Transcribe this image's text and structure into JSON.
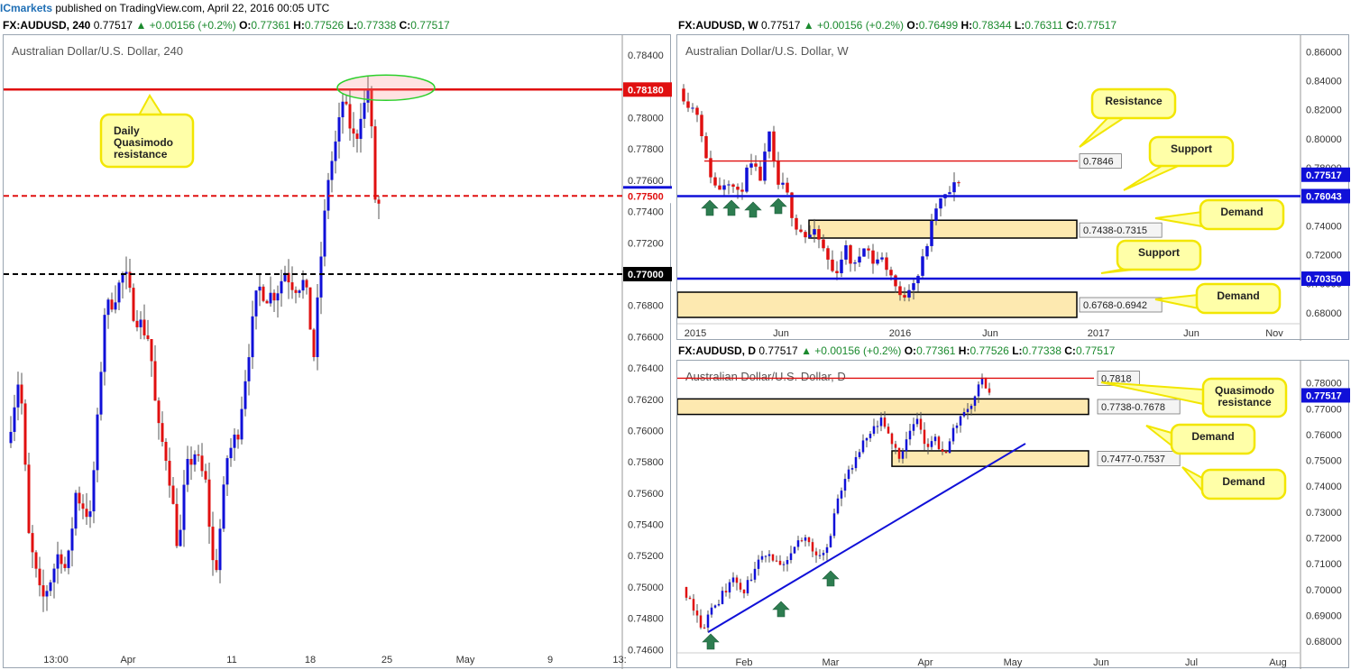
{
  "header": {
    "brand": "ICmarkets",
    "rest": " published on TradingView.com, April 22, 2016 00:05 UTC"
  },
  "colors": {
    "bull": "#1010d8",
    "bear": "#e01010",
    "zone_fill": "#fde9b0",
    "annotation_fill": "#ffffa8",
    "annotation_border": "#f2e600",
    "support_line": "#1010d8",
    "resistance_line": "#e01010"
  },
  "charts": [
    {
      "id": "h4",
      "header": {
        "symbol": "FX:AUDUSD, 240",
        "price": "0.77517",
        "change": "+0.00156 (+0.2%)",
        "o": "0.77361",
        "h": "0.77526",
        "l": "0.77338",
        "c": "0.77517"
      },
      "title": "Australian Dollar/U.S. Dollar, 240",
      "y_ticks": [
        "0.78400",
        "0.78200",
        "0.78000",
        "0.77800",
        "0.77600",
        "0.77400",
        "0.77200",
        "0.77000",
        "0.76800",
        "0.76600",
        "0.76400",
        "0.76200",
        "0.76000",
        "0.75800",
        "0.75600",
        "0.75400",
        "0.75200",
        "0.75000",
        "0.74800",
        "0.74600"
      ],
      "x_ticks": [
        "13:00",
        "Apr",
        "11",
        "18",
        "25",
        "May",
        "9",
        "13:"
      ],
      "price_labels": [
        {
          "text": "0.78180",
          "value": 0.7818,
          "kind": "red"
        },
        {
          "text": "0.77517",
          "value": 0.77517,
          "kind": "blue"
        },
        {
          "text": "0.77500",
          "value": 0.775,
          "kind": "redtext"
        },
        {
          "text": "0.77000",
          "value": 0.77,
          "kind": "black"
        }
      ],
      "annotations": [
        {
          "text": "Daily Quasimodo resistance"
        }
      ]
    },
    {
      "id": "weekly",
      "header": {
        "symbol": "FX:AUDUSD, W",
        "price": "0.77517",
        "change": "+0.00156 (+0.2%)",
        "o": "0.76499",
        "h": "0.78344",
        "l": "0.76311",
        "c": "0.77517"
      },
      "title": "Australian Dollar/U.S. Dollar, W",
      "y_ticks": [
        "0.86000",
        "0.84000",
        "0.82000",
        "0.80000",
        "0.78000",
        "0.76000",
        "0.74000",
        "0.72000",
        "0.70000",
        "0.68000"
      ],
      "x_ticks": [
        "2015",
        "Jun",
        "2016",
        "Jun",
        "2017",
        "Jun",
        "Nov"
      ],
      "price_labels": [
        {
          "text": "0.77517",
          "value": 0.77517,
          "kind": "blue"
        },
        {
          "text": "0.76043",
          "value": 0.76043,
          "kind": "blue"
        },
        {
          "text": "0.70350",
          "value": 0.7035,
          "kind": "blue"
        }
      ],
      "zone_labels": [
        "0.7846",
        "0.7438-0.7315",
        "0.6768-0.6942"
      ],
      "annotations": [
        {
          "text": "Resistance"
        },
        {
          "text": "Support"
        },
        {
          "text": "Demand"
        },
        {
          "text": "Support"
        },
        {
          "text": "Demand"
        }
      ]
    },
    {
      "id": "daily",
      "header": {
        "symbol": "FX:AUDUSD, D",
        "price": "0.77517",
        "change": "+0.00156 (+0.2%)",
        "o": "0.77361",
        "h": "0.77526",
        "l": "0.77338",
        "c": "0.77517"
      },
      "title": "Australian Dollar/U.S. Dollar, D",
      "y_ticks": [
        "0.78000",
        "0.77000",
        "0.76000",
        "0.75000",
        "0.74000",
        "0.73000",
        "0.72000",
        "0.71000",
        "0.70000",
        "0.69000",
        "0.68000"
      ],
      "x_ticks": [
        "Feb",
        "Mar",
        "Apr",
        "May",
        "Jun",
        "Jul",
        "Aug"
      ],
      "price_labels": [
        {
          "text": "0.77517",
          "value": 0.77517,
          "kind": "blue"
        }
      ],
      "zone_labels": [
        "0.7818",
        "0.7738-0.7678",
        "0.7477-0.7537"
      ],
      "annotations": [
        {
          "text": "Quasimodo resistance"
        },
        {
          "text": "Demand"
        },
        {
          "text": "Demand"
        }
      ]
    }
  ],
  "chart_data": [
    {
      "type": "candlestick",
      "title": "Australian Dollar/U.S. Dollar, 240",
      "ylim": [
        0.7455,
        0.7847
      ],
      "levels": [
        {
          "value": 0.7818,
          "style": "solid",
          "color": "red",
          "label": "Daily Quasimodo resistance"
        },
        {
          "value": 0.775,
          "style": "dashed",
          "color": "red"
        },
        {
          "value": 0.77,
          "style": "dashed",
          "color": "black"
        }
      ],
      "path": [
        [
          0,
          0.7592
        ],
        [
          14,
          0.7638
        ],
        [
          24,
          0.7532
        ],
        [
          38,
          0.749
        ],
        [
          48,
          0.7505
        ],
        [
          58,
          0.7524
        ],
        [
          66,
          0.7508
        ],
        [
          76,
          0.756
        ],
        [
          92,
          0.7544
        ],
        [
          100,
          0.7605
        ],
        [
          108,
          0.7676
        ],
        [
          118,
          0.7684
        ],
        [
          130,
          0.7702
        ],
        [
          140,
          0.7676
        ],
        [
          150,
          0.7666
        ],
        [
          158,
          0.7658
        ],
        [
          166,
          0.7604
        ],
        [
          178,
          0.758
        ],
        [
          190,
          0.7521
        ],
        [
          198,
          0.7574
        ],
        [
          208,
          0.7586
        ],
        [
          220,
          0.7566
        ],
        [
          230,
          0.7503
        ],
        [
          244,
          0.7583
        ],
        [
          256,
          0.76
        ],
        [
          268,
          0.7652
        ],
        [
          278,
          0.7692
        ],
        [
          288,
          0.7686
        ],
        [
          298,
          0.7688
        ],
        [
          308,
          0.7702
        ],
        [
          318,
          0.7692
        ],
        [
          330,
          0.7695
        ],
        [
          340,
          0.7648
        ],
        [
          348,
          0.7712
        ],
        [
          356,
          0.7762
        ],
        [
          366,
          0.7788
        ],
        [
          372,
          0.7811
        ],
        [
          380,
          0.7795
        ],
        [
          386,
          0.7783
        ],
        [
          392,
          0.7804
        ],
        [
          398,
          0.781
        ],
        [
          402,
          0.7826
        ],
        [
          406,
          0.7754
        ],
        [
          411,
          0.774
        ],
        [
          414,
          0.7752
        ]
      ],
      "markers": [
        "ellipse near 0.7818 around 20-21 Apr"
      ]
    },
    {
      "type": "candlestick",
      "title": "Australian Dollar/U.S. Dollar, W",
      "ylim": [
        0.6712,
        0.8664
      ],
      "levels": [
        {
          "value": 0.7846,
          "color": "red",
          "label": "Resistance"
        },
        {
          "value": 0.76043,
          "color": "blue",
          "label": "Support"
        },
        {
          "value": 0.7035,
          "color": "blue",
          "label": "Support"
        }
      ],
      "zones": [
        {
          "from": 0.7315,
          "to": 0.7438,
          "label": "Demand"
        },
        {
          "from": 0.6768,
          "to": 0.6942,
          "label": "Demand"
        }
      ],
      "path": [
        [
          0,
          0.8345
        ],
        [
          12,
          0.823
        ],
        [
          22,
          0.817
        ],
        [
          30,
          0.784
        ],
        [
          42,
          0.764
        ],
        [
          54,
          0.7735
        ],
        [
          66,
          0.76
        ],
        [
          78,
          0.782
        ],
        [
          90,
          0.773
        ],
        [
          100,
          0.802
        ],
        [
          108,
          0.769
        ],
        [
          118,
          0.765
        ],
        [
          128,
          0.742
        ],
        [
          140,
          0.733
        ],
        [
          152,
          0.734
        ],
        [
          164,
          0.718
        ],
        [
          172,
          0.705
        ],
        [
          184,
          0.725
        ],
        [
          194,
          0.71
        ],
        [
          206,
          0.73
        ],
        [
          214,
          0.715
        ],
        [
          224,
          0.718
        ],
        [
          236,
          0.705
        ],
        [
          246,
          0.688
        ],
        [
          256,
          0.7
        ],
        [
          266,
          0.707
        ],
        [
          276,
          0.73
        ],
        [
          286,
          0.755
        ],
        [
          296,
          0.76
        ],
        [
          306,
          0.768
        ],
        [
          314,
          0.775
        ]
      ],
      "markers": [
        "up-arrows under 2015 support touches"
      ]
    },
    {
      "type": "candlestick",
      "title": "Australian Dollar/U.S. Dollar, D",
      "ylim": [
        0.6762,
        0.7858
      ],
      "levels": [
        {
          "value": 0.7818,
          "color": "red",
          "label": "Quasimodo resistance"
        }
      ],
      "zones": [
        {
          "from": 0.7678,
          "to": 0.7738,
          "label": "Demand"
        },
        {
          "from": 0.7477,
          "to": 0.7537,
          "label": "Demand"
        }
      ],
      "trendline": [
        [
          0.6835,
          "mid-Jan"
        ],
        [
          0.7565,
          "early May"
        ]
      ],
      "path": [
        [
          0,
          0.701
        ],
        [
          10,
          0.695
        ],
        [
          22,
          0.685
        ],
        [
          32,
          0.692
        ],
        [
          44,
          0.698
        ],
        [
          56,
          0.705
        ],
        [
          66,
          0.698
        ],
        [
          78,
          0.706
        ],
        [
          90,
          0.715
        ],
        [
          102,
          0.711
        ],
        [
          114,
          0.708
        ],
        [
          124,
          0.717
        ],
        [
          136,
          0.72
        ],
        [
          148,
          0.714
        ],
        [
          160,
          0.715
        ],
        [
          170,
          0.733
        ],
        [
          180,
          0.743
        ],
        [
          190,
          0.748
        ],
        [
          200,
          0.756
        ],
        [
          210,
          0.761
        ],
        [
          220,
          0.765
        ],
        [
          230,
          0.758
        ],
        [
          240,
          0.752
        ],
        [
          250,
          0.76
        ],
        [
          260,
          0.765
        ],
        [
          270,
          0.756
        ],
        [
          280,
          0.758
        ],
        [
          290,
          0.751
        ],
        [
          300,
          0.762
        ],
        [
          310,
          0.768
        ],
        [
          320,
          0.772
        ],
        [
          330,
          0.781
        ],
        [
          336,
          0.779
        ],
        [
          340,
          0.7752
        ]
      ],
      "markers": [
        "up-arrows at trendline touches"
      ]
    }
  ]
}
